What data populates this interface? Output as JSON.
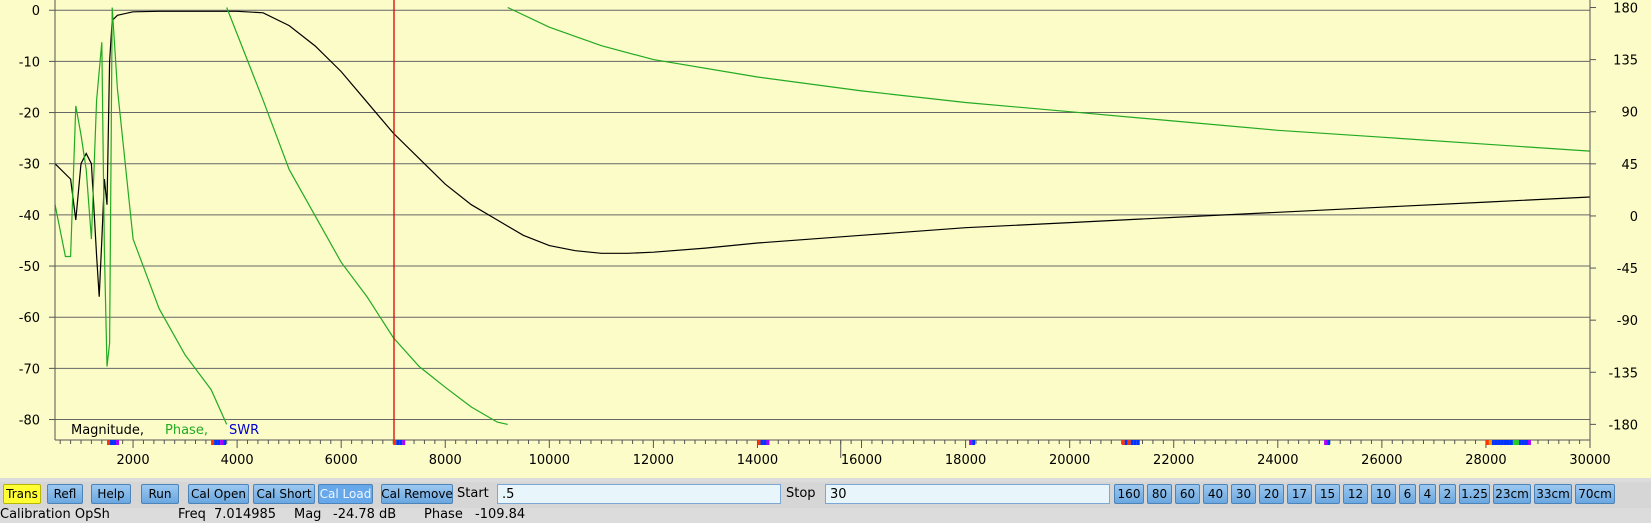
{
  "chart_data": {
    "type": "line",
    "x_ticks": [
      "2000",
      "4000",
      "6000",
      "8000",
      "10000",
      "12000",
      "14000",
      "16000",
      "18000",
      "20000",
      "22000",
      "24000",
      "26000",
      "28000",
      "30000"
    ],
    "xlim": [
      500,
      30000
    ],
    "y_left_ticks": [
      "0",
      "-10",
      "-20",
      "-30",
      "-40",
      "-50",
      "-60",
      "-70",
      "-80"
    ],
    "ylim_left": [
      -84,
      2
    ],
    "y_right_ticks": [
      "180",
      "135",
      "90",
      "45",
      "0",
      "-45",
      "-90",
      "-135",
      "-180"
    ],
    "ylim_right": [
      -193.5,
      186.5
    ],
    "grid": true,
    "legend": [
      "Magnitude,",
      "Phase,",
      "SWR"
    ],
    "legend_placement": "bottom-left",
    "marker_x": 7014.985,
    "series": [
      {
        "name": "Magnitude",
        "axis": "left",
        "x": [
          500,
          800,
          900,
          1000,
          1100,
          1200,
          1300,
          1350,
          1400,
          1450,
          1500,
          1550,
          1600,
          1700,
          2000,
          2500,
          3000,
          3500,
          4000,
          4500,
          5000,
          5500,
          6000,
          6500,
          7000,
          7500,
          8000,
          8500,
          9000,
          9500,
          10000,
          10500,
          11000,
          11500,
          12000,
          13000,
          14000,
          16000,
          18000,
          20000,
          22000,
          24000,
          26000,
          28000,
          30000
        ],
        "y": [
          -30,
          -33,
          -41,
          -30,
          -28,
          -30,
          -48,
          -56,
          -45,
          -33,
          -38,
          -10,
          -2,
          -1,
          -0.3,
          -0.2,
          -0.2,
          -0.2,
          -0.2,
          -0.5,
          -3,
          -7,
          -12,
          -18,
          -24,
          -29,
          -34,
          -38,
          -41,
          -44,
          -46,
          -47,
          -47.5,
          -47.5,
          -47.3,
          -46.5,
          -45.5,
          -44,
          -42.5,
          -41.5,
          -40.5,
          -39.5,
          -38.5,
          -37.5,
          -36.5
        ]
      },
      {
        "name": "Phase",
        "axis": "right",
        "x": [
          500,
          700,
          800,
          900,
          1000,
          1100,
          1200,
          1300,
          1400,
          1450,
          1500,
          1550,
          1600,
          1700,
          2000,
          2500,
          3000,
          3500,
          3800
        ],
        "y": [
          10,
          -35,
          -35,
          95,
          70,
          40,
          -20,
          100,
          150,
          -30,
          -130,
          -110,
          180,
          110,
          -20,
          -80,
          -120,
          -150,
          -180
        ]
      },
      {
        "name": "Phase",
        "axis": "right",
        "x": [
          3800,
          4500,
          5000,
          5500,
          6000,
          6500,
          7000,
          7500,
          8000,
          8500,
          9000,
          9200
        ],
        "y": [
          180,
          100,
          40,
          0,
          -40,
          -70,
          -105,
          -130,
          -148,
          -165,
          -178,
          -180
        ]
      },
      {
        "name": "Phase",
        "axis": "right",
        "x": [
          9200,
          10000,
          11000,
          12000,
          14000,
          16000,
          18000,
          20000,
          22000,
          24000,
          26000,
          28000,
          30000
        ],
        "y": [
          180,
          163,
          147,
          135,
          120,
          108,
          98,
          90,
          82,
          74,
          68,
          62,
          56
        ]
      }
    ],
    "band_ticks": [
      {
        "x": 1500,
        "colors": [
          "#ff3300",
          "#0033ff",
          "#0033ff",
          "#aa00ff"
        ]
      },
      {
        "x": 3500,
        "colors": [
          "#ff3300",
          "#0033ff",
          "#0033ff",
          "#aa00ff",
          "#0033ff"
        ]
      },
      {
        "x": 7000,
        "colors": [
          "#ff3300",
          "#0033ff",
          "#0033ff",
          "#aa00ff"
        ]
      },
      {
        "x": 14000,
        "colors": [
          "#ff3300",
          "#0033ff",
          "#0033ff",
          "#aa00ff"
        ]
      },
      {
        "x": 18068,
        "colors": [
          "#aa00ff",
          "#0033ff"
        ]
      },
      {
        "x": 21000,
        "colors": [
          "#ff3300",
          "#0033ff",
          "#ff3300",
          "#0033ff",
          "#0033ff",
          "#0033ff"
        ]
      },
      {
        "x": 24890,
        "colors": [
          "#aa00ff",
          "#0033ff"
        ]
      },
      {
        "x": 28000,
        "colors": [
          "#ff3300",
          "#ff9900",
          "#0033ff",
          "#0033ff",
          "#0033ff",
          "#0033ff",
          "#0033ff",
          "#0033ff",
          "#0033ff",
          "#22cc22",
          "#22cc22",
          "#0033ff",
          "#0033ff",
          "#0033ff",
          "#aa00ff"
        ]
      }
    ],
    "colors": {
      "magnitude": "#000000",
      "phase": "#22aa22",
      "swr": "#0000cc",
      "marker": "#dd0000",
      "background": "#fcfcc8",
      "grid": "#666666"
    }
  },
  "toolbar": {
    "trans": "Trans",
    "refl": "Refl",
    "help": "Help",
    "run": "Run",
    "cal_open": "Cal Open",
    "cal_short": "Cal Short",
    "cal_load": "Cal Load",
    "cal_remove": "Cal Remove",
    "start_label": "Start",
    "start_value": ".5",
    "stop_label": "Stop",
    "stop_value": "30",
    "bands": [
      "160",
      "80",
      "60",
      "40",
      "30",
      "20",
      "17",
      "15",
      "12",
      "10",
      "6",
      "4",
      "2",
      "1.25",
      "23cm",
      "33cm",
      "70cm"
    ]
  },
  "status": {
    "calibration": "Calibration OpSh",
    "freq_label": "Freq",
    "freq_value": "7.014985",
    "mag_label": "Mag",
    "mag_value": "-24.78 dB",
    "phase_label": "Phase",
    "phase_value": "-109.84"
  }
}
